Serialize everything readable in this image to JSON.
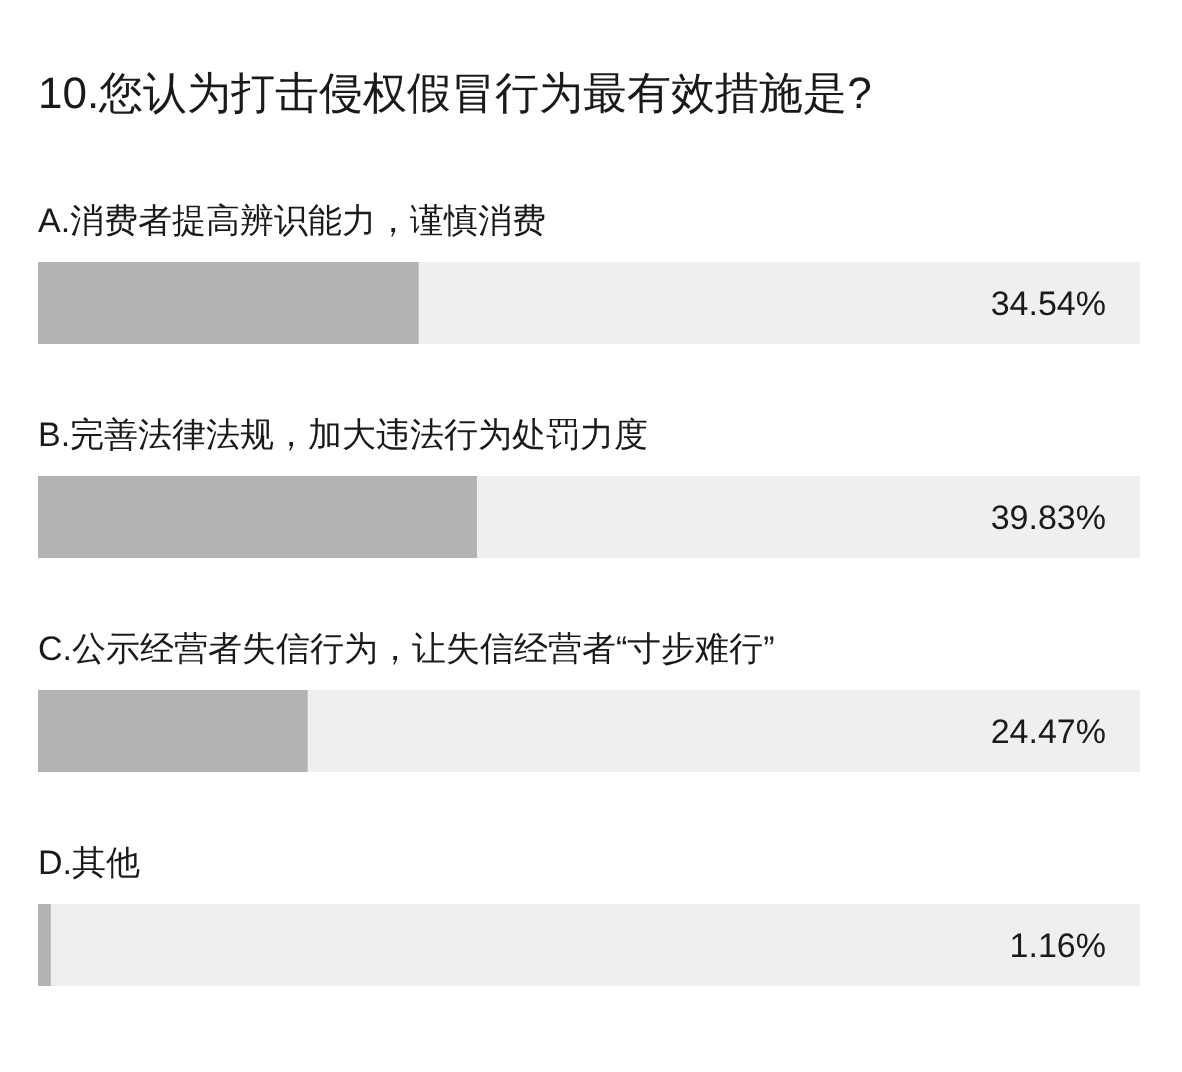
{
  "chart_data": {
    "type": "bar",
    "orientation": "horizontal",
    "title": "10.您认为打击侵权假冒行为最有效措施是?",
    "categories": [
      "A.消费者提高辨识能力，谨慎消费",
      "B.完善法律法规，加大违法行为处罚力度",
      "C.公示经营者失信行为，让失信经营者“寸步难行”",
      "D.其他"
    ],
    "values": [
      34.54,
      39.83,
      24.47,
      1.16
    ],
    "value_labels": [
      "34.54%",
      "39.83%",
      "24.47%",
      "1.16%"
    ],
    "color": "#b3b3b3",
    "xlim": [
      0,
      100
    ]
  }
}
